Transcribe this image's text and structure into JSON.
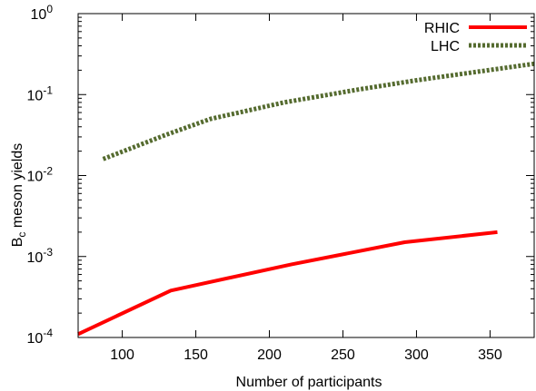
{
  "chart_data": {
    "type": "line",
    "title": "",
    "xlabel": "Number of participants",
    "ylabel_main": "B",
    "ylabel_sub": "c",
    "ylabel_rest": " meson yields",
    "xlim": [
      70,
      380
    ],
    "ylim": [
      0.0001,
      1
    ],
    "yscale": "log",
    "grid": false,
    "legend_position": "top-right",
    "x_ticks": [
      100,
      150,
      200,
      250,
      300,
      350
    ],
    "x_tick_labels": [
      "100",
      "150",
      "200",
      "250",
      "300",
      "350"
    ],
    "y_ticks": [
      {
        "value": 0.0001,
        "base": "10",
        "exp": "-4"
      },
      {
        "value": 0.001,
        "base": "10",
        "exp": "-3"
      },
      {
        "value": 0.01,
        "base": "10",
        "exp": "-2"
      },
      {
        "value": 0.1,
        "base": "10",
        "exp": "-1"
      },
      {
        "value": 1,
        "base": "10",
        "exp": "0"
      }
    ],
    "series": [
      {
        "name": "RHIC",
        "color": "#ff0000",
        "style": "solid",
        "x": [
          70,
          133,
          215,
          292,
          355
        ],
        "y": [
          0.00011,
          0.00038,
          0.0008,
          0.0015,
          0.002
        ]
      },
      {
        "name": "LHC",
        "color": "#556b2f",
        "style": "dotted",
        "x": [
          87,
          130,
          160,
          210,
          260,
          300,
          340,
          380
        ],
        "y": [
          0.016,
          0.032,
          0.05,
          0.08,
          0.115,
          0.15,
          0.19,
          0.24
        ]
      }
    ]
  }
}
